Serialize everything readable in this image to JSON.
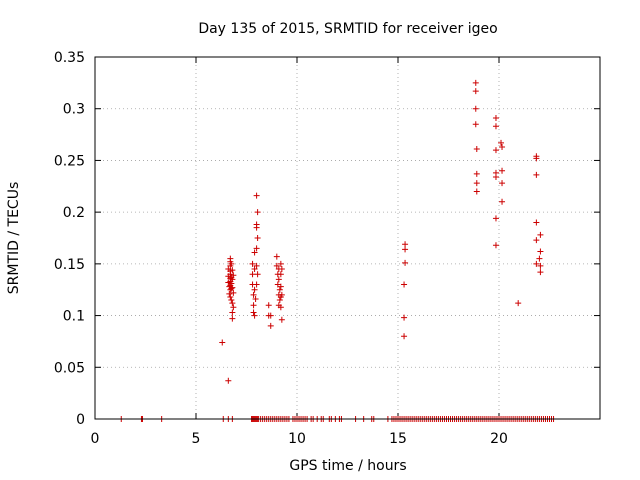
{
  "chart_data": {
    "type": "scatter",
    "title": "Day 135 of 2015, SRMTID for receiver igeo",
    "xlabel": "GPS time / hours",
    "ylabel": "SRMTID / TECUs",
    "xlim": [
      0,
      25
    ],
    "ylim": [
      0,
      0.35
    ],
    "xticks": [
      0,
      5,
      10,
      15,
      20
    ],
    "xtick_labels": [
      "0",
      "5",
      "10",
      "15",
      "20"
    ],
    "yticks": [
      0,
      0.05,
      0.1,
      0.15,
      0.2,
      0.25,
      0.3,
      0.35
    ],
    "ytick_labels": [
      "0",
      "0.05",
      "0.1",
      "0.15",
      "0.2",
      "0.25",
      "0.3",
      "0.35"
    ],
    "grid": true,
    "marker": "plus",
    "color": "#cc0000",
    "series": [
      {
        "name": "SRMTID",
        "points": [
          [
            6.3,
            0.074
          ],
          [
            6.6,
            0.037
          ],
          [
            6.6,
            0.145
          ],
          [
            6.6,
            0.138
          ],
          [
            6.6,
            0.132
          ],
          [
            6.65,
            0.128
          ],
          [
            6.65,
            0.121
          ],
          [
            6.7,
            0.155
          ],
          [
            6.7,
            0.152
          ],
          [
            6.7,
            0.148
          ],
          [
            6.7,
            0.143
          ],
          [
            6.7,
            0.14
          ],
          [
            6.7,
            0.136
          ],
          [
            6.7,
            0.133
          ],
          [
            6.7,
            0.129
          ],
          [
            6.7,
            0.125
          ],
          [
            6.7,
            0.118
          ],
          [
            6.75,
            0.15
          ],
          [
            6.75,
            0.137
          ],
          [
            6.75,
            0.131
          ],
          [
            6.75,
            0.126
          ],
          [
            6.75,
            0.115
          ],
          [
            6.8,
            0.144
          ],
          [
            6.8,
            0.135
          ],
          [
            6.8,
            0.127
          ],
          [
            6.8,
            0.112
          ],
          [
            6.8,
            0.103
          ],
          [
            6.8,
            0.097
          ],
          [
            6.85,
            0.139
          ],
          [
            6.85,
            0.122
          ],
          [
            6.85,
            0.108
          ],
          [
            7.8,
            0.15
          ],
          [
            7.8,
            0.14
          ],
          [
            7.8,
            0.13
          ],
          [
            7.85,
            0.12
          ],
          [
            7.85,
            0.11
          ],
          [
            7.85,
            0.103
          ],
          [
            7.9,
            0.161
          ],
          [
            7.9,
            0.145
          ],
          [
            7.9,
            0.125
          ],
          [
            7.9,
            0.1
          ],
          [
            7.95,
            0.116
          ],
          [
            8.0,
            0.216
          ],
          [
            8.0,
            0.188
          ],
          [
            8.0,
            0.185
          ],
          [
            8.0,
            0.165
          ],
          [
            8.0,
            0.148
          ],
          [
            8.0,
            0.13
          ],
          [
            8.05,
            0.2
          ],
          [
            8.05,
            0.175
          ],
          [
            8.05,
            0.14
          ],
          [
            8.6,
            0.11
          ],
          [
            8.6,
            0.1
          ],
          [
            8.7,
            0.09
          ],
          [
            8.7,
            0.1
          ],
          [
            9.0,
            0.157
          ],
          [
            9.0,
            0.148
          ],
          [
            9.05,
            0.14
          ],
          [
            9.05,
            0.13
          ],
          [
            9.1,
            0.145
          ],
          [
            9.1,
            0.135
          ],
          [
            9.1,
            0.12
          ],
          [
            9.1,
            0.11
          ],
          [
            9.15,
            0.125
          ],
          [
            9.15,
            0.115
          ],
          [
            9.2,
            0.15
          ],
          [
            9.2,
            0.14
          ],
          [
            9.2,
            0.128
          ],
          [
            9.2,
            0.118
          ],
          [
            9.2,
            0.108
          ],
          [
            9.25,
            0.145
          ],
          [
            9.25,
            0.12
          ],
          [
            9.25,
            0.096
          ],
          [
            15.3,
            0.08
          ],
          [
            15.3,
            0.098
          ],
          [
            15.3,
            0.13
          ],
          [
            15.35,
            0.151
          ],
          [
            15.35,
            0.164
          ],
          [
            15.35,
            0.169
          ],
          [
            18.85,
            0.325
          ],
          [
            18.85,
            0.317
          ],
          [
            18.85,
            0.3
          ],
          [
            18.85,
            0.285
          ],
          [
            18.9,
            0.261
          ],
          [
            18.9,
            0.237
          ],
          [
            18.9,
            0.228
          ],
          [
            18.9,
            0.22
          ],
          [
            19.85,
            0.291
          ],
          [
            19.85,
            0.283
          ],
          [
            19.85,
            0.26
          ],
          [
            19.85,
            0.238
          ],
          [
            19.85,
            0.234
          ],
          [
            19.85,
            0.194
          ],
          [
            19.85,
            0.168
          ],
          [
            20.1,
            0.267
          ],
          [
            20.15,
            0.263
          ],
          [
            20.15,
            0.24
          ],
          [
            20.15,
            0.228
          ],
          [
            20.15,
            0.21
          ],
          [
            20.95,
            0.112
          ],
          [
            21.85,
            0.254
          ],
          [
            21.85,
            0.252
          ],
          [
            21.85,
            0.236
          ],
          [
            21.85,
            0.19
          ],
          [
            21.85,
            0.173
          ],
          [
            21.85,
            0.15
          ],
          [
            22.0,
            0.155
          ],
          [
            22.05,
            0.178
          ],
          [
            22.05,
            0.162
          ],
          [
            22.05,
            0.148
          ],
          [
            22.05,
            0.142
          ]
        ],
        "zero_x": [
          1.3,
          2.3,
          2.35,
          3.3,
          6.35,
          6.6,
          6.8,
          7.75,
          7.8,
          7.85,
          7.9,
          7.95,
          8.0,
          8.05,
          8.1,
          8.2,
          8.3,
          8.4,
          8.5,
          8.6,
          8.7,
          8.8,
          8.9,
          9.0,
          9.1,
          9.2,
          9.3,
          9.4,
          9.5,
          9.6,
          9.8,
          9.9,
          10.0,
          10.1,
          10.2,
          10.3,
          10.4,
          10.5,
          10.7,
          10.8,
          11.0,
          11.2,
          11.3,
          11.6,
          11.7,
          11.9,
          12.1,
          12.2,
          12.9,
          13.3,
          13.7,
          13.8,
          14.5,
          14.7,
          14.8,
          14.9,
          15.0,
          15.1,
          15.2,
          15.3,
          15.4,
          15.5,
          15.6,
          15.7,
          15.8,
          15.9,
          16.0,
          16.1,
          16.2,
          16.3,
          16.4,
          16.5,
          16.6,
          16.7,
          16.8,
          16.9,
          17.0,
          17.1,
          17.2,
          17.3,
          17.4,
          17.5,
          17.6,
          17.7,
          17.8,
          17.9,
          18.0,
          18.1,
          18.2,
          18.3,
          18.4,
          18.5,
          18.6,
          18.7,
          18.8,
          18.9,
          19.0,
          19.1,
          19.2,
          19.3,
          19.4,
          19.5,
          19.6,
          19.7,
          19.8,
          19.9,
          20.0,
          20.1,
          20.2,
          20.3,
          20.4,
          20.5,
          20.6,
          20.7,
          20.8,
          20.9,
          21.0,
          21.1,
          21.2,
          21.3,
          21.4,
          21.5,
          21.6,
          21.7,
          21.8,
          21.9,
          22.0,
          22.1,
          22.2,
          22.3,
          22.4,
          22.5,
          22.6,
          22.7
        ]
      }
    ]
  }
}
